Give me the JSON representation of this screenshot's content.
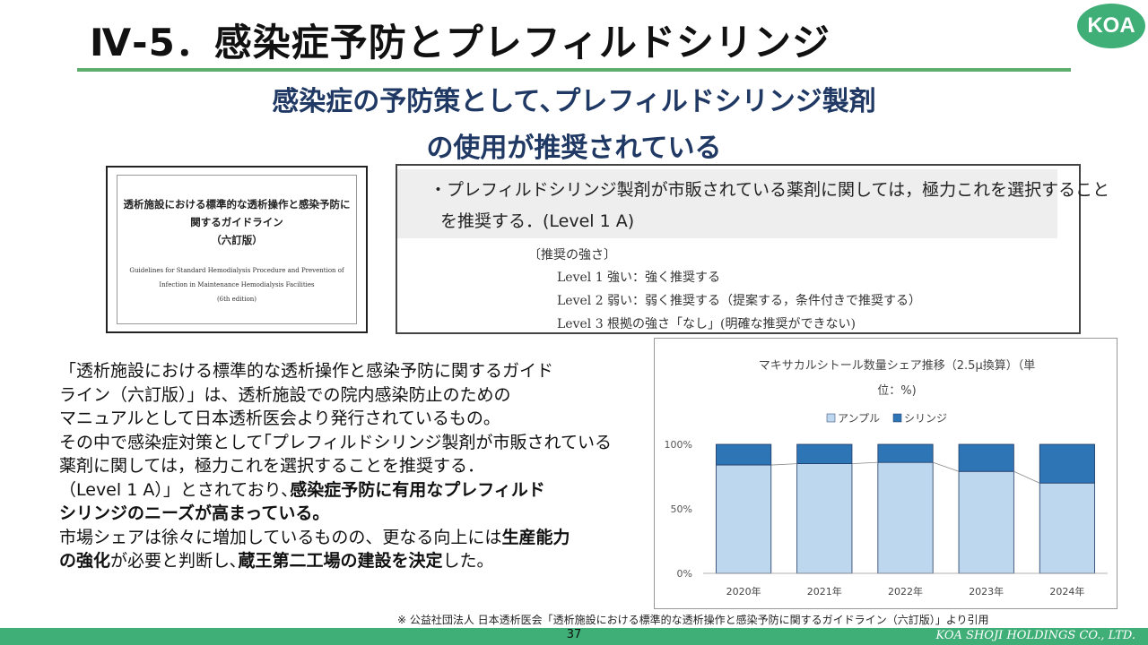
{
  "header": {
    "title": "Ⅳ-5．感染症予防とプレフィルドシリンジ",
    "logo_text": "KOA"
  },
  "subtitle": {
    "line1": "感染症の予防策として､プレフィルドシリンジ製剤",
    "line2": "の使用が推奨されている"
  },
  "guideline_cover": {
    "ja_title_line1": "透析施設における標準的な透析操作と感染予防に",
    "ja_title_line2": "関するガイドライン",
    "ja_edition": "（六訂版）",
    "en_title_line1": "Guidelines for Standard Hemodialysis Procedure and Prevention of",
    "en_title_line2": "Infection in Maintenance Hemodialysis Facilities",
    "en_edition": "(6th edition)"
  },
  "recommendation": {
    "line1": "・プレフィルドシリンジ製剤が市販されている薬剤に関しては，極力これを選択すること",
    "line2": "を推奨する．(Level 1 A)",
    "strength_heading": "〔推奨の強さ〕",
    "level1": "Level 1 強い：強く推奨する",
    "level2": "Level 2 弱い：弱く推奨する（提案する，条件付きで推奨する）",
    "level3": "Level 3 根拠の強さ「なし」(明確な推奨ができない)"
  },
  "body": {
    "l1": "「透析施設における標準的な透析操作と感染予防に関するガイド",
    "l2": "ライン（六訂版）」は、透析施設での院内感染防止のための",
    "l3": "マニュアルとして日本透析医会より発行されているもの。",
    "l4": "その中で感染症対策として｢プレフィルドシリンジ製剤が市販されている",
    "l5": "薬剤に関しては，極力これを選択することを推奨する．",
    "l6_a": "（Level 1 A）」とされており､",
    "l6_b": "感染症予防に有用なプレフィルド",
    "l7": "シリンジのニーズが高まっている。",
    "l8_a": "市場シェアは徐々に増加しているものの、更なる向上には",
    "l8_b": "生産能力",
    "l9_a": "の強化",
    "l9_b": "が必要と判断し､",
    "l9_c": "蔵王第二工場の建設を決定",
    "l9_d": "した。"
  },
  "chart_data": {
    "type": "bar",
    "stacked": true,
    "title_line1": "マキサカルシトール数量シェア推移（2.5μ換算）（単",
    "title_line2": "位：%)",
    "categories": [
      "2020年",
      "2021年",
      "2022年",
      "2023年",
      "2024年"
    ],
    "series": [
      {
        "name": "アンプル",
        "values": [
          84,
          85,
          86,
          79,
          70
        ],
        "color": "#bdd7ee"
      },
      {
        "name": "シリンジ",
        "values": [
          16,
          15,
          14,
          21,
          30
        ],
        "color": "#2e75b6"
      }
    ],
    "ylim": [
      0,
      100
    ],
    "yticks": [
      "0%",
      "50%",
      "100%"
    ],
    "legend_position": "top",
    "grid": false,
    "border_color": "#1f3864",
    "connector_lines": true
  },
  "footer": {
    "source_note": "※ 公益社団法人 日本透析医会「透析施設における標準的な透析操作と感染予防に関するガイドライン（六訂版）」より引用",
    "page_number": "37",
    "company": "KOA SHOJI HOLDINGS CO., LTD."
  }
}
